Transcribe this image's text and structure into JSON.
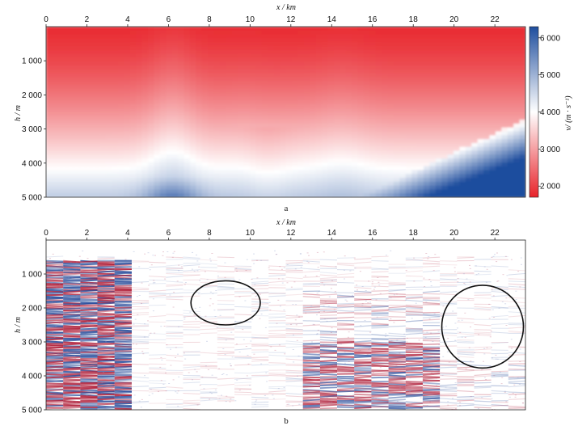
{
  "chart_data": [
    {
      "type": "heatmap",
      "panel_label": "a",
      "xlabel": "x / km",
      "ylabel": "h / m",
      "colorbar_label": "v/ (m · s⁻¹)",
      "xlim": [
        0,
        23.5
      ],
      "ylim": [
        5000,
        0
      ],
      "x_ticks": [
        0,
        2,
        4,
        6,
        8,
        10,
        12,
        14,
        16,
        18,
        20,
        22
      ],
      "y_ticks": [
        1000,
        2000,
        3000,
        4000,
        5000
      ],
      "colorbar_range": [
        1700,
        6300
      ],
      "colorbar_ticks": [
        2000,
        3000,
        4000,
        5000,
        6000
      ],
      "colorbar_tick_labels": [
        "2 000",
        "3 000",
        "4 000",
        "5 000",
        "6 000"
      ],
      "colormap": [
        "#e8232a",
        "#ffffff",
        "#1f4e9e"
      ],
      "x_tick_labels": [
        "0",
        "2",
        "4",
        "6",
        "8",
        "10",
        "12",
        "14",
        "16",
        "18",
        "20",
        "22"
      ],
      "y_tick_labels": [
        "1 000",
        "2 000",
        "3 000",
        "4 000",
        "5 000"
      ]
    },
    {
      "type": "heatmap",
      "panel_label": "b",
      "xlabel": "x / km",
      "ylabel": "h / m",
      "xlim": [
        0,
        23.5
      ],
      "ylim": [
        5000,
        0
      ],
      "x_ticks": [
        0,
        2,
        4,
        6,
        8,
        10,
        12,
        14,
        16,
        18,
        20,
        22
      ],
      "y_ticks": [
        1000,
        2000,
        3000,
        4000,
        5000
      ],
      "x_tick_labels": [
        "0",
        "2",
        "4",
        "6",
        "8",
        "10",
        "12",
        "14",
        "16",
        "18",
        "20",
        "22"
      ],
      "y_tick_labels": [
        "1 000",
        "2 000",
        "3 000",
        "4 000",
        "5 000"
      ],
      "annotations": [
        {
          "shape": "ellipse",
          "cx_km": 8.8,
          "cy_m": 1850,
          "rx_km": 1.7,
          "ry_m": 650
        },
        {
          "shape": "ellipse",
          "cx_km": 21.4,
          "cy_m": 2550,
          "rx_km": 2.0,
          "ry_m": 1220
        }
      ]
    }
  ]
}
